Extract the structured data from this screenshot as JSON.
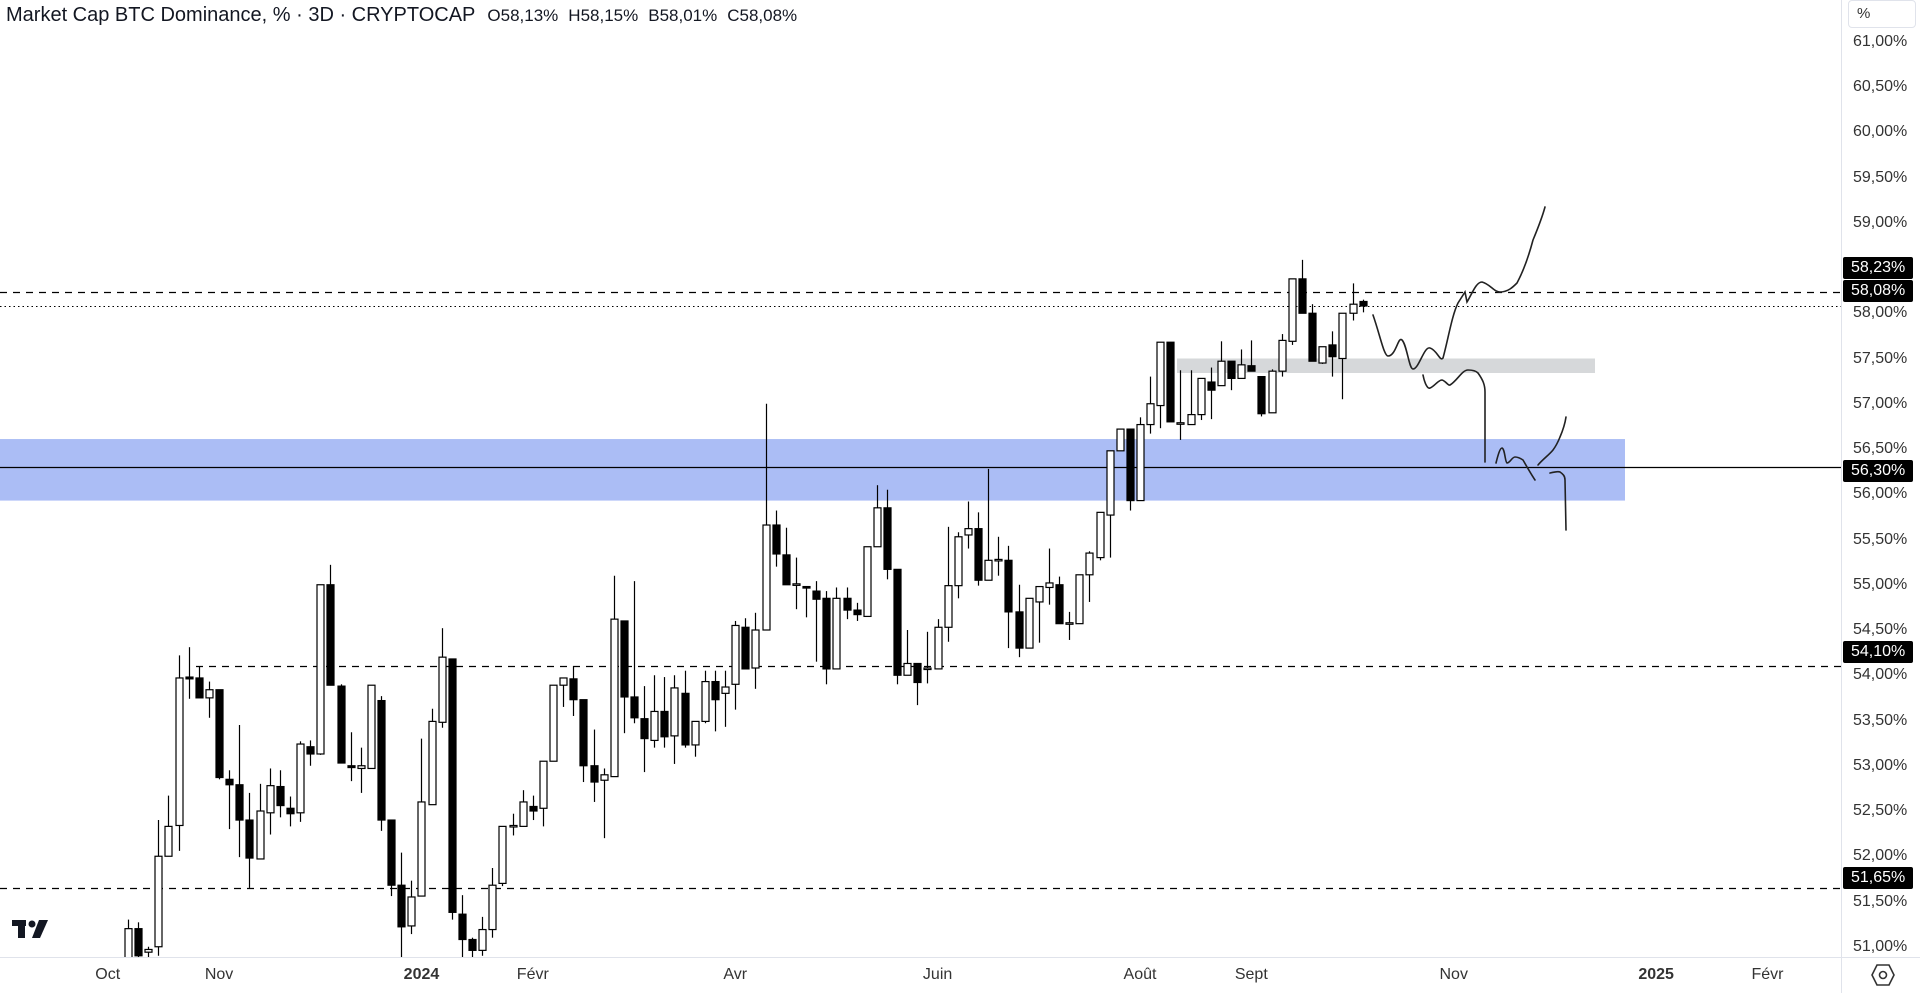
{
  "legend": {
    "title": "Market Cap BTC Dominance, % · 3D · CRYPTOCAP",
    "open": "O58,13%",
    "high": "H58,15%",
    "low": "B58,01%",
    "close": "C58,08%"
  },
  "axis": {
    "unit_label": "%",
    "price_tags": [
      {
        "label": "58,23%",
        "value": 58.23
      },
      {
        "label": "58,08%",
        "value": 58.08
      },
      {
        "label": "56,30%",
        "value": 56.3
      },
      {
        "label": "54,10%",
        "value": 54.1
      },
      {
        "label": "51,65%",
        "value": 51.65
      }
    ]
  },
  "colors": {
    "up_fill": "#ffffff",
    "down_fill": "#000000",
    "zone_blue": "#abbdf5",
    "zone_gray": "#d6d8da",
    "line": "#000000"
  },
  "icons": {
    "settings": "settings-hexagon-icon",
    "logo": "tradingview-logo"
  },
  "chart_data": {
    "type": "candlestick",
    "title": "Market Cap BTC Dominance, % · 3D · CRYPTOCAP",
    "ylabel": "%",
    "ylim": [
      50.83,
      61.0
    ],
    "grid": false,
    "y_ticks": [
      "61,00%",
      "60,50%",
      "60,00%",
      "59,50%",
      "59,00%",
      "58,50%",
      "58,00%",
      "57,50%",
      "57,00%",
      "56,50%",
      "56,00%",
      "55,50%",
      "55,00%",
      "54,50%",
      "54,00%",
      "53,50%",
      "53,00%",
      "52,50%",
      "52,00%",
      "51,50%",
      "51,00%"
    ],
    "y_tick_values": [
      61,
      60.5,
      60,
      59.5,
      59,
      58.5,
      58,
      57.5,
      57,
      56.5,
      56,
      55.5,
      55,
      54.5,
      54,
      53.5,
      53,
      52.5,
      52,
      51.5,
      51
    ],
    "x_ticks": [
      {
        "label": "Oct",
        "bold": false,
        "bar": -2
      },
      {
        "label": "Nov",
        "bold": false,
        "bar": 9
      },
      {
        "label": "2024",
        "bold": true,
        "bar": 29
      },
      {
        "label": "Févr",
        "bold": false,
        "bar": 40
      },
      {
        "label": "Avr",
        "bold": false,
        "bar": 60
      },
      {
        "label": "Juin",
        "bold": false,
        "bar": 80
      },
      {
        "label": "Août",
        "bold": false,
        "bar": 100
      },
      {
        "label": "Sept",
        "bold": false,
        "bar": 111
      },
      {
        "label": "Nov",
        "bold": false,
        "bar": 131
      },
      {
        "label": "2025",
        "bold": true,
        "bar": 151
      },
      {
        "label": "Févr",
        "bold": false,
        "bar": 162
      }
    ],
    "ohlc_fields": [
      "open",
      "high",
      "low",
      "close"
    ],
    "candles": [
      [
        50.8,
        51.3,
        50.7,
        51.2
      ],
      [
        51.2,
        51.27,
        50.7,
        50.9
      ],
      [
        50.94,
        51.0,
        50.8,
        50.97
      ],
      [
        51.0,
        52.4,
        50.9,
        52.0
      ],
      [
        52.0,
        52.67,
        52.0,
        52.33
      ],
      [
        52.34,
        54.22,
        52.06,
        53.97
      ],
      [
        53.98,
        54.31,
        53.74,
        53.96
      ],
      [
        53.97,
        54.1,
        53.75,
        53.75
      ],
      [
        53.75,
        53.93,
        53.53,
        53.84
      ],
      [
        53.84,
        53.84,
        52.85,
        52.87
      ],
      [
        52.85,
        52.95,
        52.3,
        52.79
      ],
      [
        52.79,
        53.45,
        51.99,
        52.4
      ],
      [
        52.4,
        52.7,
        51.65,
        51.98
      ],
      [
        51.97,
        52.8,
        51.97,
        52.5
      ],
      [
        52.48,
        52.97,
        52.24,
        52.78
      ],
      [
        52.77,
        52.95,
        52.43,
        52.56
      ],
      [
        52.53,
        52.66,
        52.33,
        52.47
      ],
      [
        52.48,
        53.27,
        52.38,
        53.24
      ],
      [
        53.21,
        53.28,
        53.0,
        53.13
      ],
      [
        53.13,
        55.0,
        53.12,
        55.0
      ],
      [
        55.0,
        55.22,
        53.89,
        53.89
      ],
      [
        53.88,
        53.9,
        53.03,
        53.03
      ],
      [
        53.0,
        53.37,
        52.83,
        52.98
      ],
      [
        52.97,
        53.2,
        52.7,
        53.0
      ],
      [
        52.97,
        53.89,
        52.97,
        53.89
      ],
      [
        53.72,
        53.77,
        52.28,
        52.4
      ],
      [
        52.4,
        52.4,
        51.56,
        51.68
      ],
      [
        51.68,
        52.04,
        50.88,
        51.22
      ],
      [
        51.23,
        51.73,
        51.14,
        51.55
      ],
      [
        51.56,
        53.3,
        51.56,
        52.6
      ],
      [
        52.57,
        53.63,
        52.57,
        53.49
      ],
      [
        53.48,
        54.52,
        53.42,
        54.2
      ],
      [
        54.18,
        54.18,
        51.3,
        51.38
      ],
      [
        51.36,
        51.57,
        50.83,
        51.08
      ],
      [
        51.08,
        51.1,
        50.85,
        50.96
      ],
      [
        50.96,
        51.33,
        50.9,
        51.19
      ],
      [
        51.19,
        51.87,
        51.1,
        51.68
      ],
      [
        51.7,
        52.33,
        51.67,
        52.33
      ],
      [
        52.33,
        52.47,
        52.23,
        52.34
      ],
      [
        52.33,
        52.73,
        52.33,
        52.6
      ],
      [
        52.55,
        52.67,
        52.4,
        52.5
      ],
      [
        52.53,
        53.05,
        52.33,
        53.05
      ],
      [
        53.05,
        53.89,
        53.05,
        53.89
      ],
      [
        53.89,
        53.97,
        53.65,
        53.97
      ],
      [
        53.96,
        54.1,
        53.55,
        53.73
      ],
      [
        53.73,
        53.73,
        52.82,
        53.0
      ],
      [
        53.0,
        53.4,
        52.6,
        52.82
      ],
      [
        52.84,
        52.97,
        52.2,
        52.9
      ],
      [
        52.88,
        55.1,
        52.88,
        54.62
      ],
      [
        54.6,
        54.6,
        53.36,
        53.76
      ],
      [
        53.76,
        55.04,
        53.47,
        53.53
      ],
      [
        53.52,
        53.88,
        52.93,
        53.3
      ],
      [
        53.28,
        54.0,
        53.2,
        53.6
      ],
      [
        53.6,
        53.98,
        53.2,
        53.32
      ],
      [
        53.33,
        54.0,
        53.02,
        53.86
      ],
      [
        53.8,
        54.05,
        53.2,
        53.23
      ],
      [
        53.23,
        53.49,
        53.1,
        53.49
      ],
      [
        53.49,
        54.05,
        53.47,
        53.93
      ],
      [
        53.93,
        54.05,
        53.38,
        53.73
      ],
      [
        53.8,
        54.05,
        53.43,
        53.87
      ],
      [
        53.9,
        54.6,
        53.62,
        54.55
      ],
      [
        54.53,
        54.63,
        54.07,
        54.07
      ],
      [
        54.08,
        54.69,
        53.85,
        54.5
      ],
      [
        54.5,
        57.0,
        54.5,
        55.66
      ],
      [
        55.66,
        55.82,
        55.2,
        55.34
      ],
      [
        55.33,
        55.63,
        55.0,
        55.0
      ],
      [
        55.0,
        55.3,
        54.73,
        55.01
      ],
      [
        54.98,
        54.98,
        54.64,
        54.97
      ],
      [
        54.93,
        55.04,
        54.15,
        54.84
      ],
      [
        54.85,
        54.93,
        53.9,
        54.07
      ],
      [
        54.07,
        54.97,
        54.07,
        54.85
      ],
      [
        54.85,
        54.97,
        54.62,
        54.72
      ],
      [
        54.72,
        54.8,
        54.6,
        54.67
      ],
      [
        54.65,
        55.42,
        54.65,
        55.42
      ],
      [
        55.42,
        56.1,
        55.42,
        55.85
      ],
      [
        55.85,
        56.05,
        55.06,
        55.17
      ],
      [
        55.17,
        55.17,
        53.9,
        54.0
      ],
      [
        54.0,
        54.5,
        54.0,
        54.13
      ],
      [
        54.13,
        54.13,
        53.67,
        53.92
      ],
      [
        54.07,
        54.48,
        53.91,
        54.08
      ],
      [
        54.07,
        54.62,
        54.07,
        54.53
      ],
      [
        54.53,
        55.64,
        54.37,
        54.99
      ],
      [
        54.99,
        55.58,
        54.85,
        55.53
      ],
      [
        55.55,
        55.92,
        55.4,
        55.62
      ],
      [
        55.62,
        55.8,
        54.99,
        55.05
      ],
      [
        55.05,
        56.28,
        55.05,
        55.27
      ],
      [
        55.27,
        55.53,
        55.1,
        55.28
      ],
      [
        55.27,
        55.43,
        54.3,
        54.7
      ],
      [
        54.7,
        55.0,
        54.2,
        54.3
      ],
      [
        54.3,
        54.85,
        54.3,
        54.85
      ],
      [
        54.81,
        54.98,
        54.36,
        54.98
      ],
      [
        54.97,
        55.4,
        54.78,
        55.02
      ],
      [
        55.0,
        55.09,
        54.57,
        54.57
      ],
      [
        54.57,
        54.7,
        54.39,
        54.58
      ],
      [
        54.57,
        55.11,
        54.57,
        55.11
      ],
      [
        55.11,
        55.37,
        54.81,
        55.35
      ],
      [
        55.3,
        55.8,
        55.27,
        55.8
      ],
      [
        55.77,
        56.48,
        55.3,
        56.48
      ],
      [
        56.48,
        56.72,
        56.48,
        56.72
      ],
      [
        56.72,
        56.72,
        55.82,
        55.93
      ],
      [
        55.93,
        56.85,
        55.93,
        56.77
      ],
      [
        56.77,
        57.3,
        56.67,
        57.0
      ],
      [
        56.98,
        57.68,
        56.73,
        57.68
      ],
      [
        57.68,
        57.68,
        56.8,
        56.8
      ],
      [
        56.78,
        57.37,
        56.6,
        56.79
      ],
      [
        56.77,
        57.37,
        56.77,
        56.88
      ],
      [
        56.88,
        57.28,
        56.82,
        57.28
      ],
      [
        57.24,
        57.4,
        56.83,
        57.15
      ],
      [
        57.2,
        57.69,
        57.2,
        57.47
      ],
      [
        57.47,
        57.47,
        57.15,
        57.28
      ],
      [
        57.28,
        57.6,
        57.28,
        57.43
      ],
      [
        57.42,
        57.7,
        57.36,
        57.36
      ],
      [
        57.3,
        57.3,
        56.86,
        56.89
      ],
      [
        56.9,
        57.38,
        56.9,
        57.36
      ],
      [
        57.36,
        57.77,
        57.3,
        57.7
      ],
      [
        57.69,
        58.38,
        57.65,
        58.38
      ],
      [
        58.38,
        58.59,
        58.0,
        58.0
      ],
      [
        58.0,
        58.1,
        57.47,
        57.47
      ],
      [
        57.45,
        57.63,
        57.44,
        57.63
      ],
      [
        57.65,
        57.8,
        57.3,
        57.52
      ],
      [
        57.5,
        58.0,
        57.05,
        58.0
      ],
      [
        58.0,
        58.33,
        57.92,
        58.1
      ],
      [
        58.13,
        58.15,
        58.01,
        58.08
      ]
    ],
    "zones": [
      {
        "name": "blue-support-zone",
        "low": 55.93,
        "high": 56.61,
        "color": "#abbdf5"
      },
      {
        "name": "gray-zone",
        "low": 57.34,
        "high": 57.5,
        "color": "#d6d8da"
      }
    ],
    "horizontal_lines": [
      {
        "value": 58.23,
        "style": "dashed"
      },
      {
        "value": 58.08,
        "style": "dotted"
      },
      {
        "value": 56.3,
        "style": "solid"
      },
      {
        "value": 54.1,
        "style": "dashed"
      },
      {
        "value": 51.65,
        "style": "dashed"
      }
    ]
  }
}
